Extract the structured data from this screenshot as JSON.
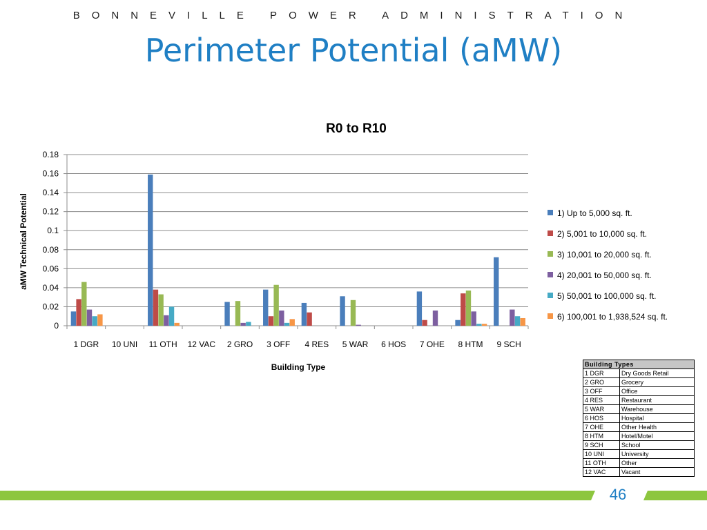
{
  "header": {
    "org": "BONNEVILLE POWER ADMINISTRATION",
    "title": "Perimeter Potential (aMW)"
  },
  "chart_data": {
    "type": "bar",
    "title": "R0 to R10",
    "xlabel": "Building Type",
    "ylabel": "aMW Technical Potential",
    "ylim": [
      0,
      0.18
    ],
    "yticks": [
      "0",
      "0.02",
      "0.04",
      "0.06",
      "0.08",
      "0.1",
      "0.12",
      "0.14",
      "0.16",
      "0.18"
    ],
    "grid": true,
    "legend_position": "right",
    "categories": [
      "1 DGR",
      "10 UNI",
      "11 OTH",
      "12 VAC",
      "2 GRO",
      "3 OFF",
      "4 RES",
      "5 WAR",
      "6 HOS",
      "7 OHE",
      "8 HTM",
      "9 SCH"
    ],
    "series": [
      {
        "name": "1) Up to 5,000 sq. ft.",
        "color": "#4a7ebb",
        "values": [
          0.015,
          0,
          0.159,
          0,
          0.025,
          0.038,
          0.024,
          0.031,
          0,
          0.036,
          0.006,
          0.072
        ]
      },
      {
        "name": "2) 5,001 to 10,000 sq. ft.",
        "color": "#be4b48",
        "values": [
          0.028,
          0,
          0.038,
          0,
          0,
          0.01,
          0.014,
          0,
          0,
          0.006,
          0.034,
          0
        ]
      },
      {
        "name": "3) 10,001 to 20,000 sq. ft.",
        "color": "#98b954",
        "values": [
          0.046,
          0,
          0.033,
          0,
          0.026,
          0.043,
          0,
          0.027,
          0,
          0,
          0.037,
          0
        ]
      },
      {
        "name": "4) 20,001 to 50,000 sq. ft.",
        "color": "#7d5fa0",
        "values": [
          0.017,
          0,
          0.011,
          0,
          0.003,
          0.016,
          0,
          0.001,
          0,
          0.016,
          0.015,
          0.017
        ]
      },
      {
        "name": "5) 50,001 to 100,000 sq. ft.",
        "color": "#46aac5",
        "values": [
          0.01,
          0,
          0.02,
          0,
          0.004,
          0.003,
          0,
          0,
          0,
          0,
          0.002,
          0.01
        ]
      },
      {
        "name": "6) 100,001 to 1,938,524 sq. ft.",
        "color": "#f79646",
        "values": [
          0.012,
          0,
          0.003,
          0,
          0,
          0.007,
          0,
          0,
          0,
          0,
          0.002,
          0.008
        ]
      }
    ]
  },
  "lookup_table": {
    "header": "Building Types",
    "rows": [
      [
        "1 DGR",
        "Dry Goods Retail"
      ],
      [
        "2 GRO",
        "Grocery"
      ],
      [
        "3 OFF",
        "Office"
      ],
      [
        "4 RES",
        "Restaurant"
      ],
      [
        "5 WAR",
        "Warehouse"
      ],
      [
        "6 HOS",
        "Hospital"
      ],
      [
        "7 OHE",
        "Other Health"
      ],
      [
        "8 HTM",
        "Hotel/Motel"
      ],
      [
        "9 SCH",
        "School"
      ],
      [
        "10 UNI",
        "University"
      ],
      [
        "11 OTH",
        "Other"
      ],
      [
        "12 VAC",
        "Vacant"
      ]
    ]
  },
  "footer": {
    "page_number": "46",
    "bar_color": "#8dc63f"
  }
}
